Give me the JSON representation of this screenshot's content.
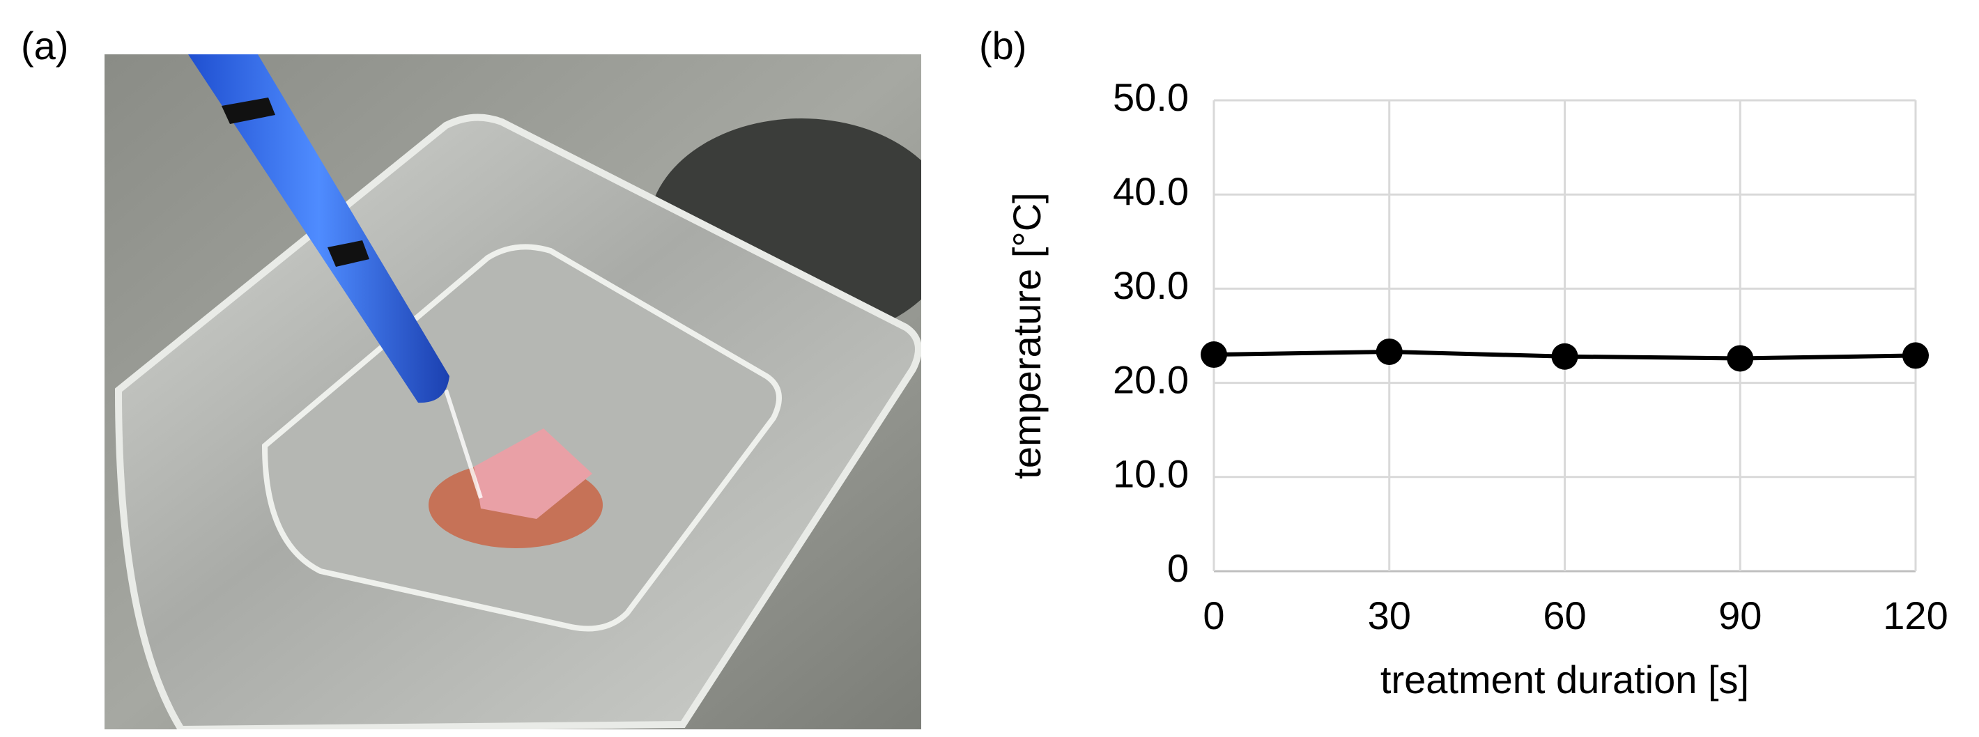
{
  "panel_labels": [
    "(a)",
    "(b)"
  ],
  "chart_data": {
    "type": "line",
    "x_label": "treatment duration [s]",
    "y_label": "temperature [°C]",
    "x": [
      0,
      30,
      60,
      90,
      120
    ],
    "series": [
      {
        "color": "#000000",
        "values": [
          23.0,
          23.3,
          22.8,
          22.6,
          22.9
        ]
      }
    ],
    "xlim": [
      0,
      120
    ],
    "xticks": [
      0,
      30,
      60,
      90,
      120
    ],
    "ylim": [
      0,
      50
    ],
    "yticks": [
      0,
      {
        "value": 10,
        "label": "10.0"
      },
      {
        "value": 20,
        "label": "20.0"
      },
      {
        "value": 30,
        "label": "30.0"
      },
      {
        "value": 40,
        "label": "40.0"
      },
      {
        "value": 50,
        "label": "50.0"
      }
    ],
    "grid": true
  }
}
